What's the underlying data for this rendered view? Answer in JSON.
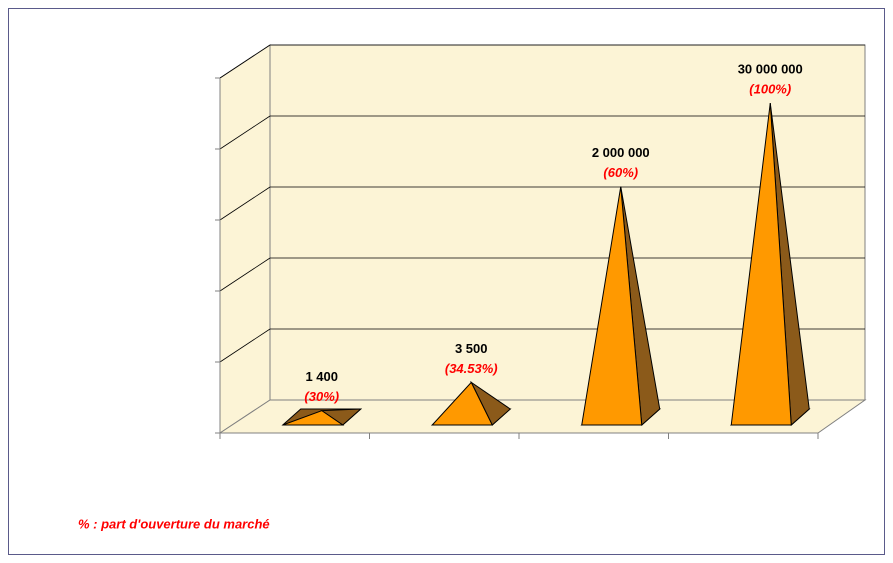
{
  "chart_data": {
    "type": "pyramid3d",
    "categories": [
      null,
      null,
      null,
      null
    ],
    "values": [
      1400,
      3500,
      2000000,
      30000000
    ],
    "value_labels": [
      "1 400",
      "3 500",
      "2 000 000",
      "30 000 000"
    ],
    "share_labels": [
      "(30%)",
      "(34.53%)",
      "(60%)",
      "(100%)"
    ],
    "log_scale": true,
    "ylim": [
      1000,
      100000000
    ],
    "yticks": [
      1000,
      10000,
      100000,
      1000000,
      10000000,
      100000000
    ],
    "grid": true,
    "color": "#ff9900",
    "side_color": "#8b5a1a",
    "footnote": "% : part d'ouverture du marché"
  }
}
